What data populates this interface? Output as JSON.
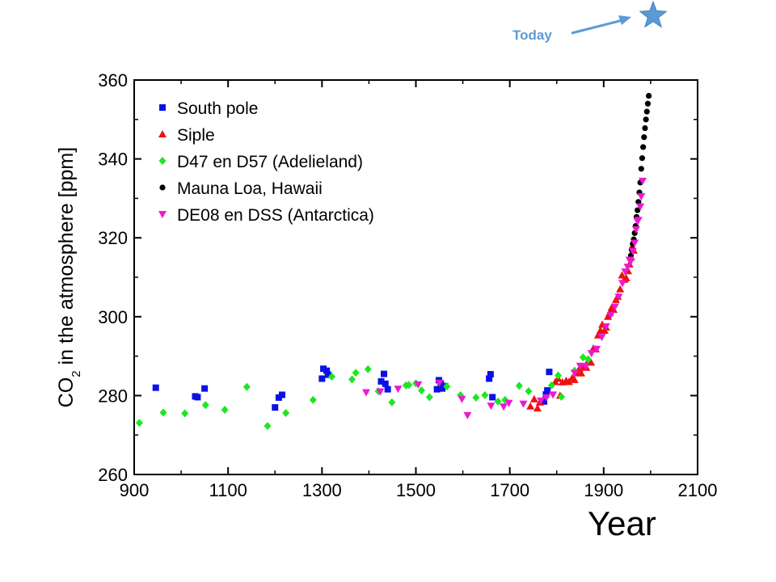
{
  "chart_data": {
    "type": "scatter",
    "xlabel": "Year",
    "ylabel": {
      "prefix": "CO",
      "subscript": "2",
      "rest": " in the atmosphere  [ppm]"
    },
    "xlim": [
      900,
      2100
    ],
    "ylim": [
      260,
      360
    ],
    "xticks": [
      900,
      1100,
      1300,
      1500,
      1700,
      1900,
      2100
    ],
    "yticks": [
      260,
      280,
      300,
      320,
      340,
      360
    ],
    "grid": false,
    "legend_position": "top-left",
    "annotation": {
      "text": "Today",
      "marker": "star",
      "color": "#5b9bd5"
    },
    "series": [
      {
        "name": "South pole",
        "marker": "square",
        "color": "#0a10e6",
        "points": [
          [
            946,
            282
          ],
          [
            1030,
            279.8
          ],
          [
            1035,
            279.6
          ],
          [
            1050,
            281.8
          ],
          [
            1200,
            277
          ],
          [
            1208,
            279.5
          ],
          [
            1215,
            280.2
          ],
          [
            1300,
            284.3
          ],
          [
            1303,
            286.8
          ],
          [
            1310,
            286.3
          ],
          [
            1313,
            285.3
          ],
          [
            1426,
            283.6
          ],
          [
            1432,
            285.5
          ],
          [
            1435,
            283
          ],
          [
            1440,
            281.6
          ],
          [
            1545,
            281.6
          ],
          [
            1549,
            283.9
          ],
          [
            1553,
            283
          ],
          [
            1556,
            281.8
          ],
          [
            1562,
            282.4
          ],
          [
            1656,
            284.3
          ],
          [
            1659,
            285.4
          ],
          [
            1663,
            279.6
          ],
          [
            1773,
            278.5
          ],
          [
            1777,
            280.3
          ],
          [
            1780,
            281.3
          ],
          [
            1784,
            286
          ]
        ]
      },
      {
        "name": "Siple",
        "marker": "triangle-up",
        "color": "#ee1111",
        "points": [
          [
            1744,
            277.3
          ],
          [
            1752,
            279.1
          ],
          [
            1759,
            276.8
          ],
          [
            1764,
            278.3
          ],
          [
            1797,
            283.5
          ],
          [
            1803,
            284.3
          ],
          [
            1807,
            280
          ],
          [
            1812,
            283.4
          ],
          [
            1820,
            283.8
          ],
          [
            1826,
            283.5
          ],
          [
            1833,
            284.5
          ],
          [
            1838,
            284
          ],
          [
            1843,
            285.7
          ],
          [
            1848,
            286.8
          ],
          [
            1852,
            285.7
          ],
          [
            1857,
            287.3
          ],
          [
            1863,
            287.1
          ],
          [
            1868,
            289
          ],
          [
            1873,
            288.4
          ],
          [
            1878,
            292
          ],
          [
            1883,
            291.8
          ],
          [
            1888,
            295.3
          ],
          [
            1893,
            296.5
          ],
          [
            1897,
            298
          ],
          [
            1902,
            296.5
          ],
          [
            1905,
            297.3
          ],
          [
            1909,
            300
          ],
          [
            1913,
            301
          ],
          [
            1917,
            302.3
          ],
          [
            1921,
            301.8
          ],
          [
            1926,
            304.3
          ],
          [
            1930,
            305.1
          ],
          [
            1935,
            307
          ],
          [
            1939,
            310.5
          ],
          [
            1944,
            309.4
          ],
          [
            1948,
            309.8
          ],
          [
            1952,
            311.6
          ],
          [
            1955,
            313.3
          ],
          [
            1958,
            315
          ],
          [
            1961,
            317.8
          ],
          [
            1964,
            316.8
          ]
        ]
      },
      {
        "name": "D47 en D57 (Adelieland)",
        "marker": "diamond",
        "color": "#1ee622",
        "points": [
          [
            911,
            273.1
          ],
          [
            962,
            275.7
          ],
          [
            1008,
            275.5
          ],
          [
            1052,
            277.6
          ],
          [
            1093,
            276.4
          ],
          [
            1140,
            282.2
          ],
          [
            1184,
            272.3
          ],
          [
            1223,
            275.6
          ],
          [
            1281,
            278.9
          ],
          [
            1321,
            284.8
          ],
          [
            1364,
            284.1
          ],
          [
            1372,
            285.8
          ],
          [
            1398,
            286.7
          ],
          [
            1420,
            281.1
          ],
          [
            1449,
            278.3
          ],
          [
            1479,
            282.6
          ],
          [
            1485,
            282.7
          ],
          [
            1500,
            283.1
          ],
          [
            1512,
            281.3
          ],
          [
            1529,
            279.6
          ],
          [
            1566,
            282.3
          ],
          [
            1595,
            280.1
          ],
          [
            1628,
            279.5
          ],
          [
            1647,
            280.1
          ],
          [
            1675,
            278.5
          ],
          [
            1690,
            278.9
          ],
          [
            1720,
            282.5
          ],
          [
            1740,
            281.1
          ],
          [
            1789,
            282.6
          ],
          [
            1803,
            285.1
          ],
          [
            1810,
            279.7
          ],
          [
            1838,
            286.3
          ],
          [
            1856,
            289.7
          ],
          [
            1867,
            289.2
          ]
        ]
      },
      {
        "name": "Mauna Loa, Hawaii",
        "marker": "circle",
        "color": "#000000",
        "points": [
          [
            1958,
            315.5
          ],
          [
            1960,
            316.9
          ],
          [
            1962,
            318.5
          ],
          [
            1964,
            319.6
          ],
          [
            1966,
            321.2
          ],
          [
            1968,
            323
          ],
          [
            1970,
            325.3
          ],
          [
            1972,
            327
          ],
          [
            1974,
            329.1
          ],
          [
            1976,
            331.5
          ],
          [
            1978,
            334
          ],
          [
            1980,
            337.5
          ],
          [
            1982,
            340.2
          ],
          [
            1984,
            343
          ],
          [
            1986,
            345.5
          ],
          [
            1988,
            347.8
          ],
          [
            1990,
            350
          ],
          [
            1992,
            352
          ],
          [
            1994,
            354
          ],
          [
            1996,
            356
          ]
        ]
      },
      {
        "name": "DE08 en DSS (Antarctica)",
        "marker": "triangle-down",
        "color": "#ee18d0",
        "points": [
          [
            1394,
            280.8
          ],
          [
            1424,
            281
          ],
          [
            1462,
            281.7
          ],
          [
            1505,
            282.8
          ],
          [
            1550,
            283.2
          ],
          [
            1598,
            279.1
          ],
          [
            1610,
            275
          ],
          [
            1660,
            277.4
          ],
          [
            1687,
            277.2
          ],
          [
            1698,
            278.1
          ],
          [
            1729,
            277.9
          ],
          [
            1766,
            278.7
          ],
          [
            1778,
            279.5
          ],
          [
            1792,
            280.2
          ],
          [
            1838,
            285.7
          ],
          [
            1850,
            287.5
          ],
          [
            1862,
            287.4
          ],
          [
            1874,
            290.7
          ],
          [
            1885,
            291.8
          ],
          [
            1896,
            294.8
          ],
          [
            1905,
            297.5
          ],
          [
            1915,
            300.4
          ],
          [
            1924,
            302.5
          ],
          [
            1932,
            305
          ],
          [
            1940,
            308.5
          ],
          [
            1946,
            311.4
          ],
          [
            1951,
            312.6
          ],
          [
            1955,
            314.4
          ],
          [
            1958,
            314.1
          ],
          [
            1962,
            316.6
          ],
          [
            1966,
            318.7
          ],
          [
            1969,
            322.1
          ],
          [
            1972,
            324.2
          ],
          [
            1974,
            324.5
          ],
          [
            1978,
            327.9
          ],
          [
            1980,
            330.5
          ],
          [
            1983,
            334.4
          ]
        ]
      }
    ]
  }
}
